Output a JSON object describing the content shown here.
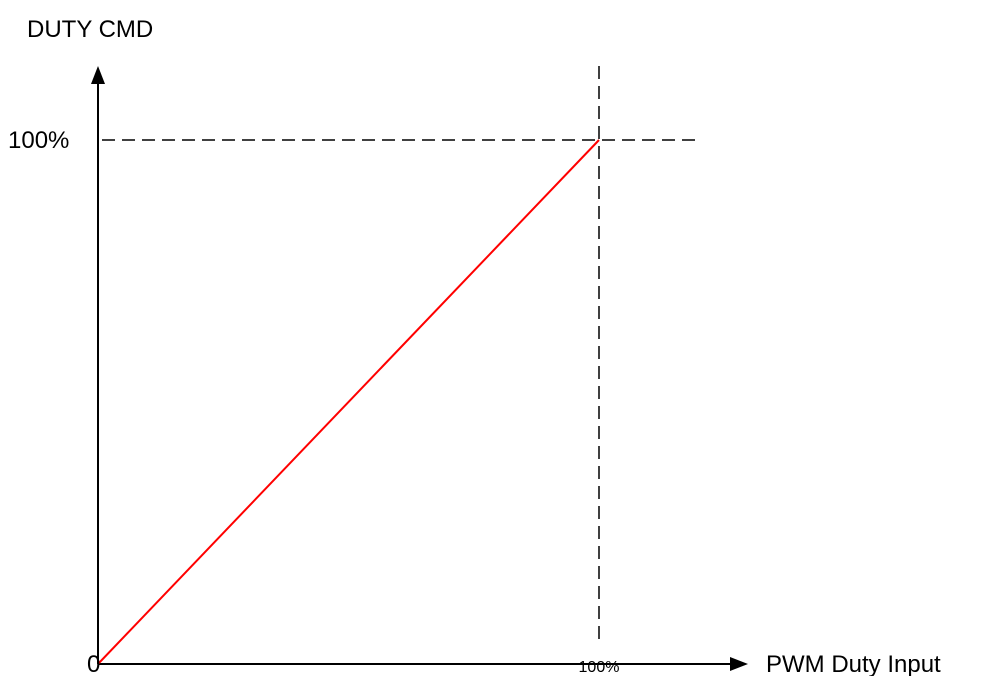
{
  "chart_data": {
    "type": "line",
    "ylabel": "DUTY CMD",
    "xlabel": "PWM Duty Input",
    "origin_label": "0",
    "x_tick_label": "100%",
    "y_tick_label": "100%",
    "xlim": [
      0,
      100
    ],
    "ylim": [
      0,
      100
    ],
    "grid": false,
    "reference_lines": {
      "x": 100,
      "y": 100,
      "style": "dashed"
    },
    "series": [
      {
        "x": [
          0,
          100
        ],
        "y": [
          0,
          100
        ],
        "color": "#ff0000"
      }
    ]
  },
  "colors": {
    "line": "#ff0000",
    "axis": "#000000",
    "background": "#ffffff"
  }
}
